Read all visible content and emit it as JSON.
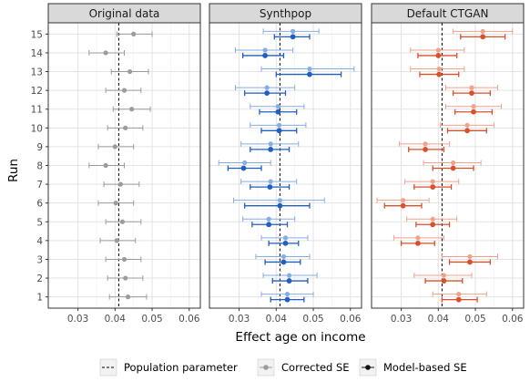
{
  "chart_data": {
    "type": "scatter",
    "subtype": "dot-and-whisker (faceted)",
    "xlabel": "Effect age on income",
    "ylabel": "Run",
    "xlim": [
      0.022,
      0.063
    ],
    "xticks": [
      0.03,
      0.04,
      0.05,
      0.06
    ],
    "xtick_labels": [
      "0.03",
      "0.04",
      "0.05",
      "0.06"
    ],
    "ylim": [
      0.4,
      15.6
    ],
    "yticks": [
      1,
      2,
      3,
      4,
      5,
      6,
      7,
      8,
      9,
      10,
      11,
      12,
      13,
      14,
      15
    ],
    "ytick_labels": [
      "1",
      "2",
      "3",
      "4",
      "5",
      "6",
      "7",
      "8",
      "9",
      "10",
      "11",
      "12",
      "13",
      "14",
      "15"
    ],
    "reference_line": {
      "x": 0.041,
      "label": "Population parameter",
      "style": "dashed"
    },
    "grid": true,
    "legend_position": "bottom",
    "legend": [
      {
        "label": "Population parameter",
        "kind": "dashed-line"
      },
      {
        "label": "Corrected SE",
        "kind": "light-point-range"
      },
      {
        "label": "Model-based SE",
        "kind": "dark-point-range"
      }
    ],
    "panels": [
      {
        "title": "Original data",
        "color_light": "#9b9b9b",
        "color_dark": "#555555",
        "points": [
          {
            "run": 15,
            "light": [
              0.0405,
              0.045,
              0.05
            ]
          },
          {
            "run": 14,
            "light": [
              0.033,
              0.0375,
              0.0425
            ]
          },
          {
            "run": 13,
            "light": [
              0.039,
              0.044,
              0.049
            ]
          },
          {
            "run": 12,
            "light": [
              0.0375,
              0.0425,
              0.047
            ]
          },
          {
            "run": 11,
            "light": [
              0.0395,
              0.0445,
              0.0495
            ]
          },
          {
            "run": 10,
            "light": [
              0.038,
              0.0428,
              0.0475
            ]
          },
          {
            "run": 9,
            "light": [
              0.0355,
              0.04,
              0.045
            ]
          },
          {
            "run": 8,
            "light": [
              0.033,
              0.0375,
              0.0425
            ]
          },
          {
            "run": 7,
            "light": [
              0.037,
              0.0415,
              0.0465
            ]
          },
          {
            "run": 6,
            "light": [
              0.0355,
              0.0402,
              0.045
            ]
          },
          {
            "run": 5,
            "light": [
              0.0375,
              0.042,
              0.047
            ]
          },
          {
            "run": 4,
            "light": [
              0.036,
              0.0405,
              0.0455
            ]
          },
          {
            "run": 3,
            "light": [
              0.0375,
              0.0425,
              0.047
            ]
          },
          {
            "run": 2,
            "light": [
              0.038,
              0.0428,
              0.0475
            ]
          },
          {
            "run": 1,
            "light": [
              0.0385,
              0.0435,
              0.0485
            ]
          }
        ]
      },
      {
        "title": "Synthpop",
        "color_light": "#86aee6",
        "color_dark": "#1f5fc4",
        "points": [
          {
            "run": 15,
            "light": [
              0.0365,
              0.0445,
              0.0515
            ],
            "dark": [
              0.0395,
              0.0445,
              0.049
            ]
          },
          {
            "run": 14,
            "light": [
              0.029,
              0.037,
              0.0445
            ],
            "dark": [
              0.031,
              0.037,
              0.042
            ]
          },
          {
            "run": 13,
            "light": [
              0.036,
              0.049,
              0.061
            ],
            "dark": [
              0.04,
              0.049,
              0.0575
            ]
          },
          {
            "run": 12,
            "light": [
              0.029,
              0.0375,
              0.045
            ],
            "dark": [
              0.0315,
              0.0375,
              0.0425
            ]
          },
          {
            "run": 11,
            "light": [
              0.033,
              0.0405,
              0.0475
            ],
            "dark": [
              0.0355,
              0.0405,
              0.0455
            ]
          },
          {
            "run": 10,
            "light": [
              0.033,
              0.0408,
              0.048
            ],
            "dark": [
              0.036,
              0.0408,
              0.0455
            ]
          },
          {
            "run": 9,
            "light": [
              0.0305,
              0.0385,
              0.046
            ],
            "dark": [
              0.033,
              0.0385,
              0.0435
            ]
          },
          {
            "run": 8,
            "light": [
              0.0245,
              0.0315,
              0.0385
            ],
            "dark": [
              0.027,
              0.0312,
              0.036
            ]
          },
          {
            "run": 7,
            "light": [
              0.0305,
              0.0385,
              0.0455
            ],
            "dark": [
              0.033,
              0.0383,
              0.0435
            ]
          },
          {
            "run": 6,
            "light": [
              0.0285,
              0.041,
              0.053
            ],
            "dark": [
              0.0315,
              0.041,
              0.049
            ]
          },
          {
            "run": 5,
            "light": [
              0.031,
              0.038,
              0.045
            ],
            "dark": [
              0.0335,
              0.038,
              0.043
            ]
          },
          {
            "run": 4,
            "light": [
              0.036,
              0.0425,
              0.0485
            ],
            "dark": [
              0.038,
              0.0425,
              0.046
            ]
          },
          {
            "run": 3,
            "light": [
              0.0345,
              0.042,
              0.049
            ],
            "dark": [
              0.037,
              0.042,
              0.0465
            ]
          },
          {
            "run": 2,
            "light": [
              0.0365,
              0.0435,
              0.051
            ],
            "dark": [
              0.039,
              0.0435,
              0.0485
            ]
          },
          {
            "run": 1,
            "light": [
              0.036,
              0.043,
              0.05
            ],
            "dark": [
              0.0385,
              0.043,
              0.0475
            ]
          }
        ]
      },
      {
        "title": "Default CTGAN",
        "color_light": "#f0a28c",
        "color_dark": "#d9502b",
        "points": [
          {
            "run": 15,
            "light": [
              0.044,
              0.052,
              0.06
            ],
            "dark": [
              0.046,
              0.052,
              0.058
            ]
          },
          {
            "run": 14,
            "light": [
              0.0325,
              0.04,
              0.047
            ],
            "dark": [
              0.0345,
              0.04,
              0.045
            ]
          },
          {
            "run": 13,
            "light": [
              0.0325,
              0.0402,
              0.047
            ],
            "dark": [
              0.035,
              0.0402,
              0.0455
            ]
          },
          {
            "run": 12,
            "light": [
              0.042,
              0.049,
              0.056
            ],
            "dark": [
              0.044,
              0.049,
              0.054
            ]
          },
          {
            "run": 11,
            "light": [
              0.042,
              0.0495,
              0.057
            ],
            "dark": [
              0.0445,
              0.0495,
              0.0545
            ]
          },
          {
            "run": 10,
            "light": [
              0.0405,
              0.0478,
              0.055
            ],
            "dark": [
              0.0425,
              0.0478,
              0.053
            ]
          },
          {
            "run": 9,
            "light": [
              0.0295,
              0.0365,
              0.043
            ],
            "dark": [
              0.032,
              0.0365,
              0.0415
            ]
          },
          {
            "run": 8,
            "light": [
              0.036,
              0.044,
              0.0515
            ],
            "dark": [
              0.0385,
              0.044,
              0.0495
            ]
          },
          {
            "run": 7,
            "light": [
              0.031,
              0.0385,
              0.0455
            ],
            "dark": [
              0.0335,
              0.0385,
              0.0435
            ]
          },
          {
            "run": 6,
            "light": [
              0.0235,
              0.0305,
              0.0375
            ],
            "dark": [
              0.0255,
              0.0305,
              0.0355
            ]
          },
          {
            "run": 5,
            "light": [
              0.0315,
              0.0385,
              0.045
            ],
            "dark": [
              0.034,
              0.0385,
              0.043
            ]
          },
          {
            "run": 4,
            "light": [
              0.028,
              0.0345,
              0.0415
            ],
            "dark": [
              0.03,
              0.0345,
              0.039
            ]
          },
          {
            "run": 3,
            "light": [
              0.041,
              0.0485,
              0.056
            ],
            "dark": [
              0.043,
              0.0485,
              0.054
            ]
          },
          {
            "run": 2,
            "light": [
              0.0335,
              0.0415,
              0.049
            ],
            "dark": [
              0.0365,
              0.0415,
              0.0465
            ]
          },
          {
            "run": 1,
            "light": [
              0.0385,
              0.0455,
              0.053
            ],
            "dark": [
              0.041,
              0.0455,
              0.0505
            ]
          }
        ]
      }
    ]
  }
}
